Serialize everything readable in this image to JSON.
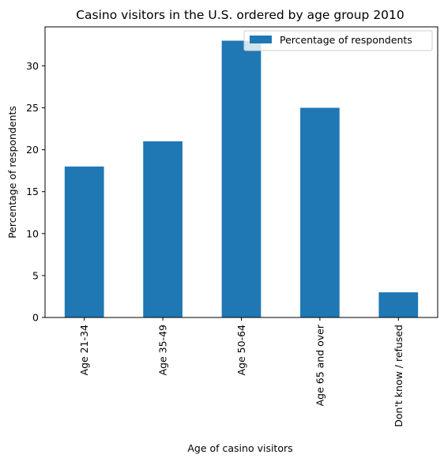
{
  "chart_data": {
    "type": "bar",
    "title": "Casino visitors in the U.S. ordered by age group 2010",
    "xlabel": "Age of casino visitors",
    "ylabel": "Percentage of respondents",
    "categories": [
      "Age 21-34",
      "Age 35-49",
      "Age 50-64",
      "Age 65 and over",
      "Don't know / refused"
    ],
    "series": [
      {
        "name": "Percentage of respondents",
        "values": [
          18,
          21,
          33,
          25,
          3
        ]
      }
    ],
    "ylim": [
      0,
      34.65
    ],
    "yticks": [
      0,
      5,
      10,
      15,
      20,
      25,
      30
    ],
    "grid": false,
    "legend_position": "top-right",
    "bar_color": "#1f77b4"
  }
}
